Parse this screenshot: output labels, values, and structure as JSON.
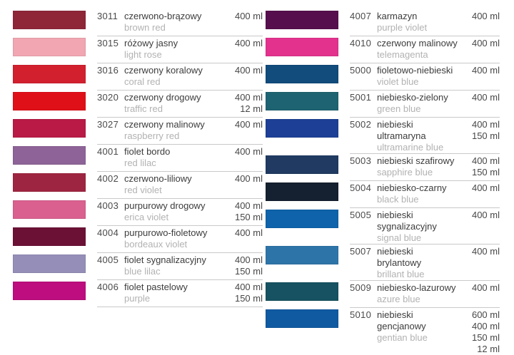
{
  "page": {
    "background": "#ffffff",
    "divider_color": "#c9c9c9",
    "description": "spray paint color chart"
  },
  "columns": [
    {
      "rows": [
        {
          "code": "3011",
          "name_pl": "czerwono-brązowy",
          "name_en": "brown red",
          "volumes": [
            "400 ml"
          ],
          "color": "#8e2638"
        },
        {
          "code": "3015",
          "name_pl": "różowy jasny",
          "name_en": "light rose",
          "volumes": [
            "400 ml"
          ],
          "color": "#f1a6b2"
        },
        {
          "code": "3016",
          "name_pl": "czerwony koralowy",
          "name_en": "coral red",
          "volumes": [
            "400 ml"
          ],
          "color": "#d2202f"
        },
        {
          "code": "3020",
          "name_pl": "czerwony drogowy",
          "name_en": "traffic red",
          "volumes": [
            "400 ml",
            "12 ml"
          ],
          "color": "#e01019"
        },
        {
          "code": "3027",
          "name_pl": "czerwony malinowy",
          "name_en": "raspberry red",
          "volumes": [
            "400 ml"
          ],
          "color": "#b91a46"
        },
        {
          "code": "4001",
          "name_pl": "fiolet bordo",
          "name_en": "red lilac",
          "volumes": [
            "400 ml"
          ],
          "color": "#8d6398"
        },
        {
          "code": "4002",
          "name_pl": "czerwono-liliowy",
          "name_en": "red violet",
          "volumes": [
            "400 ml"
          ],
          "color": "#9e2541"
        },
        {
          "code": "4003",
          "name_pl": "purpurowy drogowy",
          "name_en": "erica violet",
          "volumes": [
            "400 ml",
            "150 ml"
          ],
          "color": "#d9608f"
        },
        {
          "code": "4004",
          "name_pl": "purpurowo-fioletowy",
          "name_en": "bordeaux violet",
          "volumes": [
            "400 ml"
          ],
          "color": "#6c1136"
        },
        {
          "code": "4005",
          "name_pl": "fiolet sygnalizacyjny",
          "name_en": "blue lilac",
          "volumes": [
            "400 ml",
            "150 ml"
          ],
          "color": "#948eb8"
        },
        {
          "code": "4006",
          "name_pl": "fiolet pastelowy",
          "name_en": "purple",
          "volumes": [
            "400 ml",
            "150 ml"
          ],
          "color": "#bd0d7e"
        }
      ]
    },
    {
      "rows": [
        {
          "code": "4007",
          "name_pl": "karmazyn",
          "name_en": "purple violet",
          "volumes": [
            "400 ml"
          ],
          "color": "#570e4d"
        },
        {
          "code": "4010",
          "name_pl": "czerwony malinowy",
          "name_en": "telemagenta",
          "volumes": [
            "400 ml"
          ],
          "color": "#e2328e"
        },
        {
          "code": "5000",
          "name_pl": "fioletowo-niebieski",
          "name_en": "violet blue",
          "volumes": [
            "400 ml"
          ],
          "color": "#114c7d"
        },
        {
          "code": "5001",
          "name_pl": "niebiesko-zielony",
          "name_en": "green blue",
          "volumes": [
            "400 ml"
          ],
          "color": "#1e6372"
        },
        {
          "code": "5002",
          "name_pl": "niebieski ultramaryna",
          "name_en": "ultramarine blue",
          "volumes": [
            "400 ml",
            "150 ml"
          ],
          "color": "#1d4096"
        },
        {
          "code": "5003",
          "name_pl": "niebieski szafirowy",
          "name_en": "sapphire blue",
          "volumes": [
            "400 ml",
            "150 ml"
          ],
          "color": "#203a62"
        },
        {
          "code": "5004",
          "name_pl": "niebiesko-czarny",
          "name_en": "black blue",
          "volumes": [
            "400 ml"
          ],
          "color": "#152030"
        },
        {
          "code": "5005",
          "name_pl": "niebieski sygnalizacyjny",
          "name_en": "signal blue",
          "volumes": [
            "400 ml"
          ],
          "color": "#0e63aa"
        },
        {
          "code": "5007",
          "name_pl": "niebieski brylantowy",
          "name_en": "brillant blue",
          "volumes": [
            "400 ml"
          ],
          "color": "#2d75a9"
        },
        {
          "code": "5009",
          "name_pl": "niebiesko-lazurowy",
          "name_en": "azure blue",
          "volumes": [
            "400 ml"
          ],
          "color": "#165261"
        },
        {
          "code": "5010",
          "name_pl": "niebieski gencjanowy",
          "name_en": "gentian blue",
          "volumes": [
            "600 ml",
            "400 ml",
            "150 ml",
            "12 ml"
          ],
          "color": "#105aa2"
        }
      ]
    }
  ]
}
